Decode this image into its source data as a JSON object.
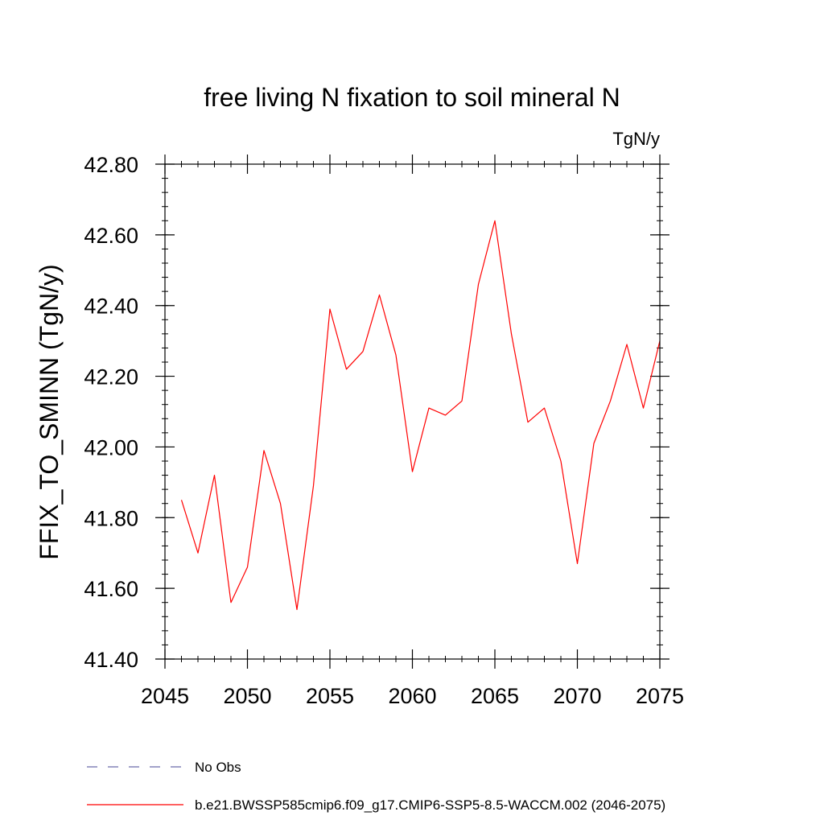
{
  "chart_data": {
    "type": "line",
    "title": "free living N fixation to soil mineral N",
    "units_label": "TgN/y",
    "ylabel": "FFIX_TO_SMINN  (TgN/y)",
    "xlabel": "",
    "xlim": [
      2045,
      2075
    ],
    "ylim": [
      41.4,
      42.8
    ],
    "x_ticks": [
      2045,
      2050,
      2055,
      2060,
      2065,
      2070,
      2075
    ],
    "x_tick_labels": [
      "2045",
      "2050",
      "2055",
      "2060",
      "2065",
      "2070",
      "2075"
    ],
    "y_ticks": [
      41.4,
      41.6,
      41.8,
      42.0,
      42.2,
      42.4,
      42.6,
      42.8
    ],
    "y_tick_labels": [
      "41.40",
      "41.60",
      "41.80",
      "42.00",
      "42.20",
      "42.40",
      "42.60",
      "42.80"
    ],
    "x_minor_step": 1,
    "y_minor_step": 0.04,
    "grid": false,
    "legend_position": "bottom",
    "series": [
      {
        "name": "b.e21.BWSSP585cmip6.f09_g17.CMIP6-SSP5-8.5-WACCM.002 (2046-2075)",
        "color": "#ff0000",
        "style": "solid",
        "x": [
          2046,
          2047,
          2048,
          2049,
          2050,
          2051,
          2052,
          2053,
          2054,
          2055,
          2056,
          2057,
          2058,
          2059,
          2060,
          2061,
          2062,
          2063,
          2064,
          2065,
          2066,
          2067,
          2068,
          2069,
          2070,
          2071,
          2072,
          2073,
          2074,
          2075
        ],
        "values": [
          41.85,
          41.7,
          41.92,
          41.56,
          41.66,
          41.99,
          41.84,
          41.54,
          41.89,
          42.39,
          42.22,
          42.27,
          42.43,
          42.26,
          41.93,
          42.11,
          42.09,
          42.13,
          42.46,
          42.64,
          42.32,
          42.07,
          42.11,
          41.96,
          41.67,
          42.01,
          42.13,
          42.29,
          42.11,
          42.3
        ]
      }
    ],
    "legend": [
      {
        "label": "No Obs",
        "color": "#6a6aaa",
        "style": "dashed"
      },
      {
        "label": "b.e21.BWSSP585cmip6.f09_g17.CMIP6-SSP5-8.5-WACCM.002 (2046-2075)",
        "color": "#ff0000",
        "style": "solid"
      }
    ]
  }
}
